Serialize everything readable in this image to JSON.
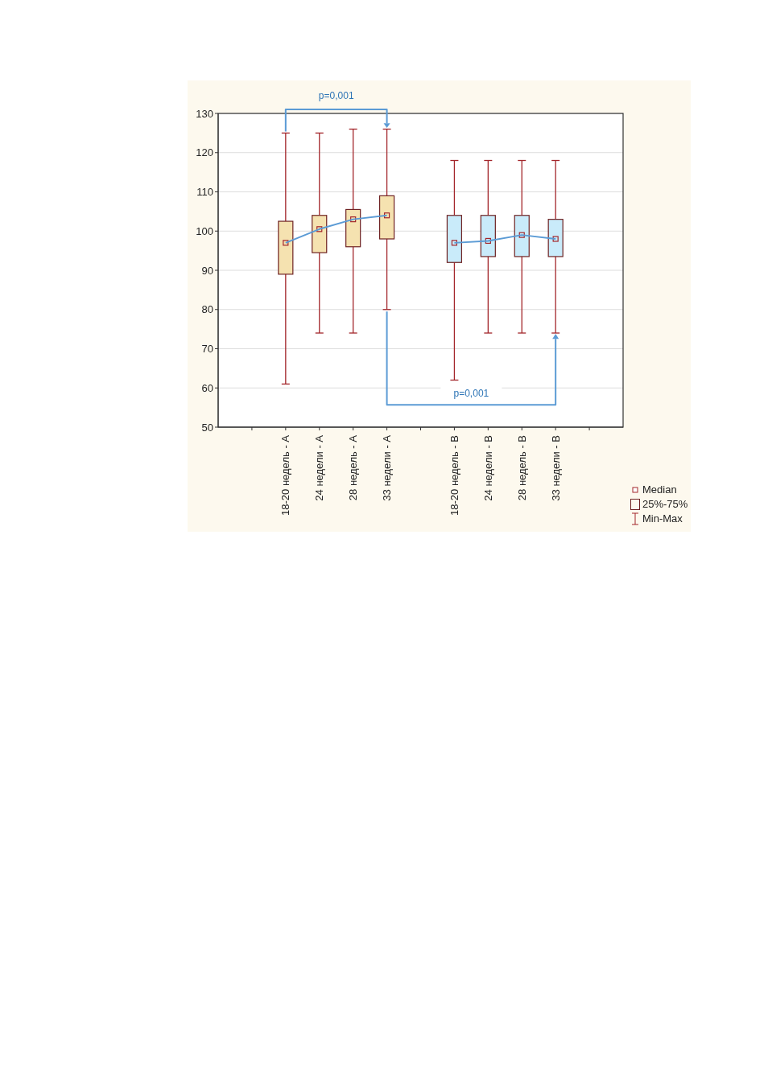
{
  "chart_data": {
    "type": "box",
    "categories": [
      null,
      "18-20 недель - A",
      "24 недели - A",
      "28 недель - A",
      "33 недели - A",
      null,
      "18-20 недель - B",
      "24 недели - B",
      "28 недель - B",
      "33 недели - B",
      null
    ],
    "series": [
      {
        "color": "#f5e2b0",
        "boxes": [
          null,
          {
            "low": 61,
            "q1": 89,
            "median": 97,
            "q3": 102.5,
            "high": 125
          },
          {
            "low": 74,
            "q1": 94.5,
            "median": 100.5,
            "q3": 104,
            "high": 125
          },
          {
            "low": 74,
            "q1": 96,
            "median": 103,
            "q3": 105.5,
            "high": 126
          },
          {
            "low": 80,
            "q1": 98,
            "median": 104,
            "q3": 109,
            "high": 126
          },
          null,
          null,
          null,
          null,
          null,
          null
        ]
      },
      {
        "color": "#c9ebfa",
        "boxes": [
          null,
          null,
          null,
          null,
          null,
          null,
          {
            "low": 62,
            "q1": 92,
            "median": 97,
            "q3": 104,
            "high": 118
          },
          {
            "low": 74,
            "q1": 93.5,
            "median": 97.5,
            "q3": 104,
            "high": 118
          },
          {
            "low": 74,
            "q1": 93.5,
            "median": 99,
            "q3": 104,
            "high": 118
          },
          {
            "low": 74,
            "q1": 93.5,
            "median": 98,
            "q3": 103,
            "high": 118
          },
          null
        ]
      },
      {
        "type": "line",
        "color": "#5b9bd5",
        "values": [
          null,
          97,
          100.5,
          103,
          104,
          null,
          null,
          null,
          null,
          null,
          null
        ]
      },
      {
        "type": "line",
        "color": "#5b9bd5",
        "values": [
          null,
          null,
          null,
          null,
          null,
          null,
          97,
          97.5,
          99,
          98,
          null
        ]
      }
    ],
    "ylim": [
      50,
      130
    ],
    "yticks": [
      50,
      60,
      70,
      80,
      90,
      100,
      110,
      120,
      130
    ],
    "grid": "y",
    "annotations": [
      "p=0,001",
      "p=0,001",
      "Median",
      "25%-75%",
      "Min-Max"
    ]
  }
}
